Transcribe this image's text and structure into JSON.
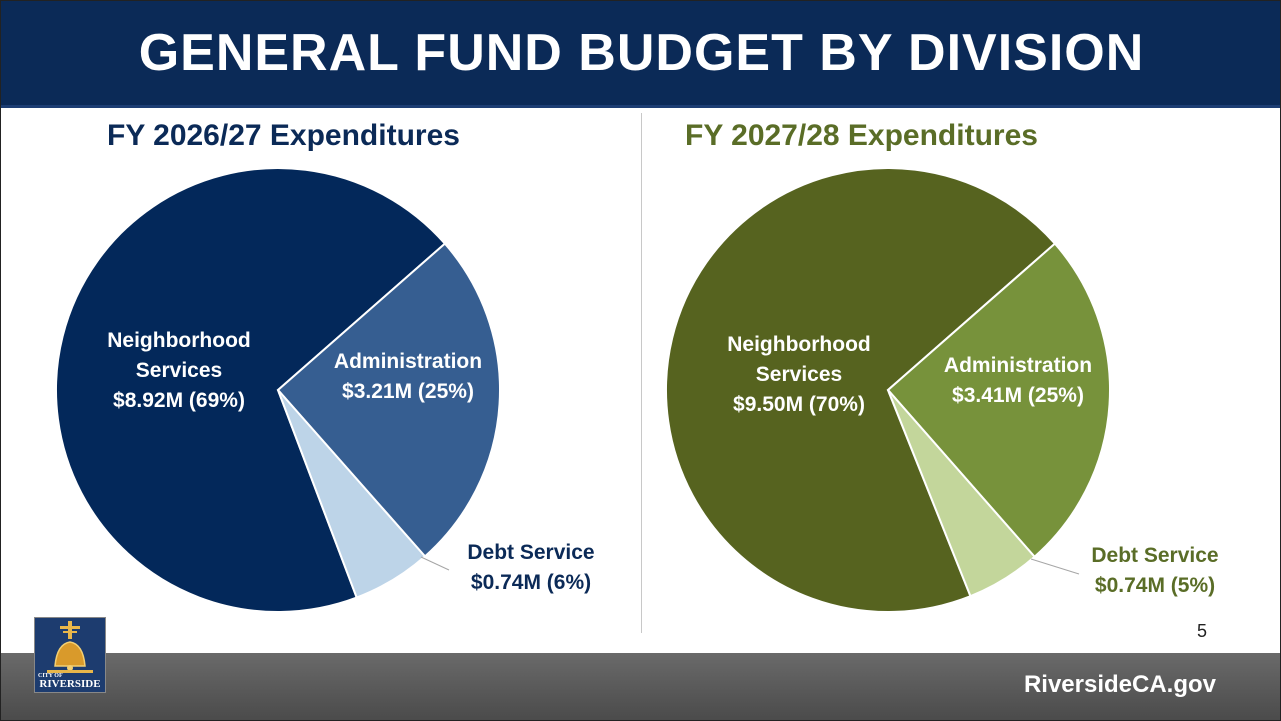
{
  "slide": {
    "title": "GENERAL FUND BUDGET BY DIVISION",
    "page_number": "5",
    "website": "RiversideCA.gov",
    "logo": {
      "icon": "riverside-bell-logo",
      "small_text": "CITY OF",
      "text": "RIVERSIDE"
    }
  },
  "chart_data": [
    {
      "type": "pie",
      "title": "FY 2026/27 Expenditures",
      "title_color": "#0b2a57",
      "slices": [
        {
          "label": "Neighborhood Services",
          "value": 8.92,
          "value_text": "$8.92M (69%)",
          "percent": 69,
          "color": "#03285a",
          "label_color": "#ffffff"
        },
        {
          "label": "Administration",
          "value": 3.21,
          "value_text": "$3.21M (25%)",
          "percent": 25,
          "color": "#365e91",
          "label_color": "#ffffff"
        },
        {
          "label": "Debt Service",
          "value": 0.74,
          "value_text": "$0.74M (6%)",
          "percent": 6,
          "color": "#bdd4e8",
          "label_color": "#0b2a57"
        }
      ]
    },
    {
      "type": "pie",
      "title": "FY 2027/28 Expenditures",
      "title_color": "#5a6d27",
      "slices": [
        {
          "label": "Neighborhood Services",
          "value": 9.5,
          "value_text": "$9.50M (70%)",
          "percent": 70,
          "color": "#56631f",
          "label_color": "#ffffff"
        },
        {
          "label": "Administration",
          "value": 3.41,
          "value_text": "$3.41M (25%)",
          "percent": 25,
          "color": "#77923b",
          "label_color": "#ffffff"
        },
        {
          "label": "Debt Service",
          "value": 0.74,
          "value_text": "$0.74M (5%)",
          "percent": 5,
          "color": "#c3d69b",
          "label_color": "#5a6d27"
        }
      ]
    }
  ]
}
